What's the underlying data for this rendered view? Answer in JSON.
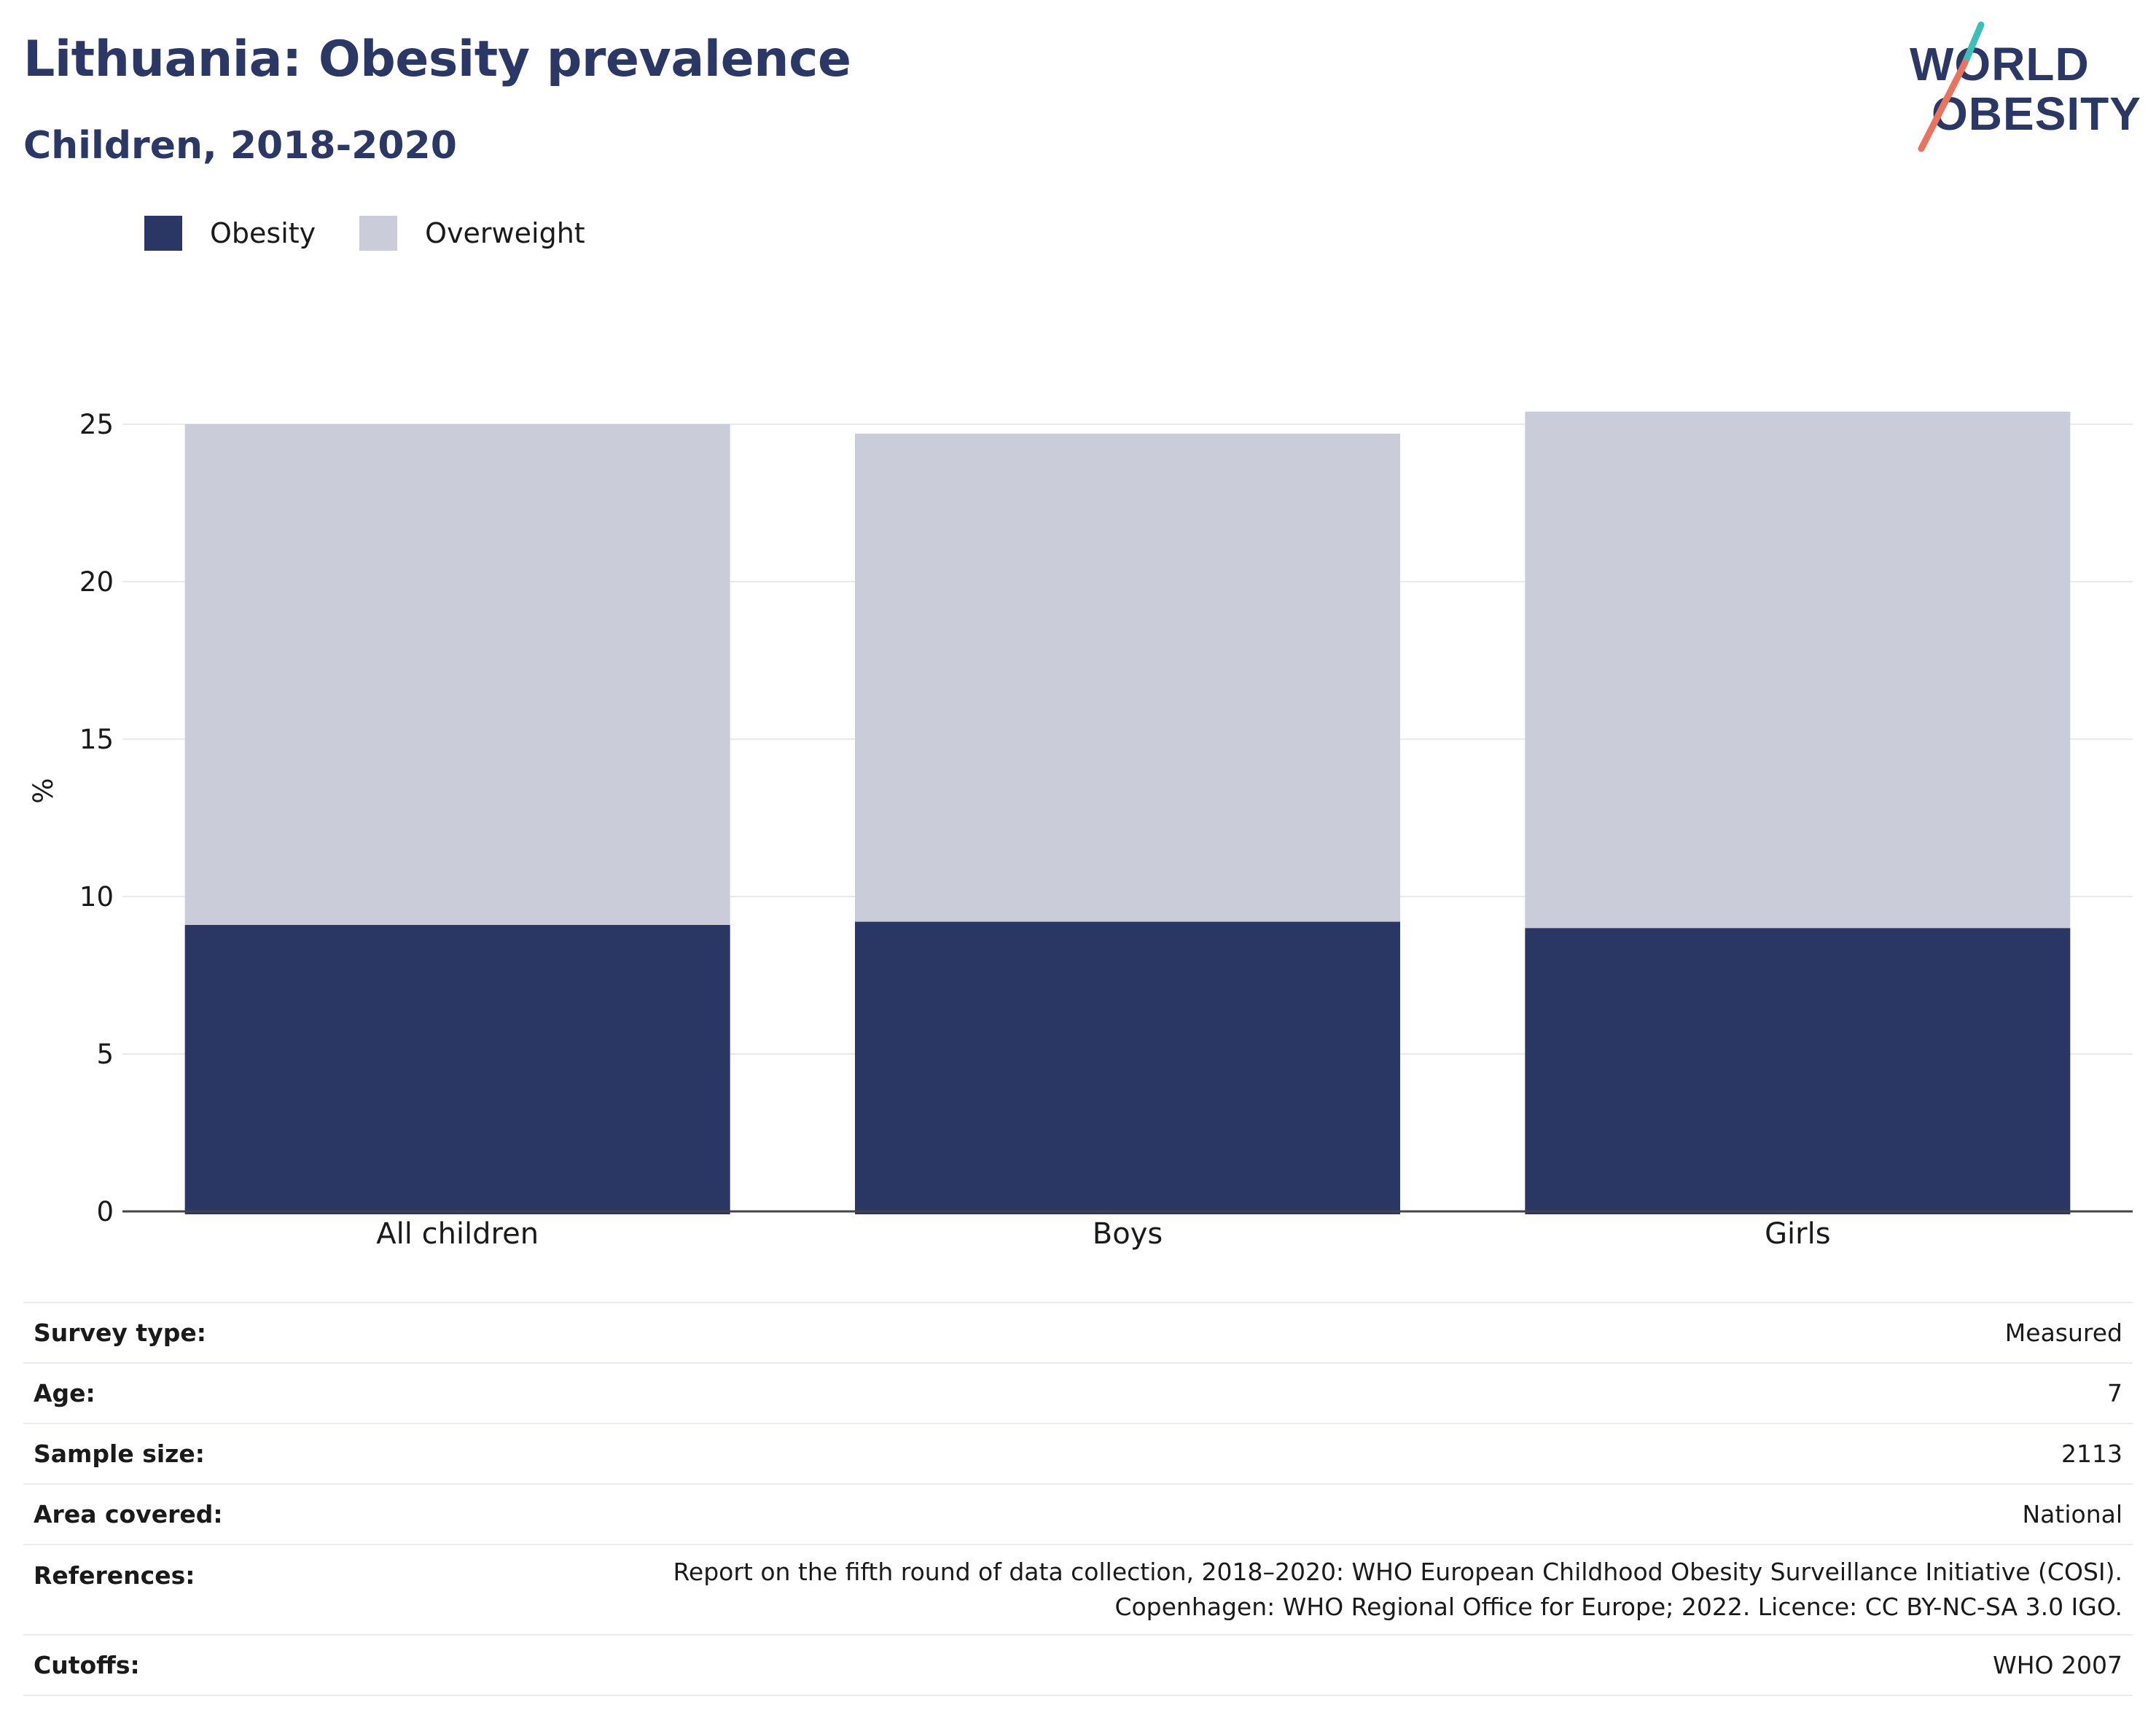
{
  "header": {
    "title": "Lithuania: Obesity prevalence",
    "subtitle": "Children, 2018-2020"
  },
  "logo": {
    "line1": "WORLD",
    "line2": "OBESITY"
  },
  "colors": {
    "obesity": "#2a3663",
    "overweight": "#cacdd9",
    "logo_teal": "#3cbfb4",
    "logo_coral": "#e8735f"
  },
  "legend": [
    {
      "label": "Obesity",
      "color": "#2a3663"
    },
    {
      "label": "Overweight",
      "color": "#cacdd9"
    }
  ],
  "chart_data": {
    "type": "bar",
    "stacked": true,
    "categories": [
      "All children",
      "Boys",
      "Girls"
    ],
    "series": [
      {
        "name": "Obesity",
        "values": [
          9.1,
          9.2,
          9.0
        ]
      },
      {
        "name": "Overweight",
        "values": [
          15.9,
          15.5,
          16.4
        ]
      }
    ],
    "ylabel": "%",
    "ylim": [
      0,
      25.5
    ],
    "yticks": [
      0,
      5,
      10,
      15,
      20,
      25
    ],
    "grid": true,
    "legend_position": "top-left"
  },
  "info": [
    {
      "label": "Survey type:",
      "value": "Measured"
    },
    {
      "label": "Age:",
      "value": "7"
    },
    {
      "label": "Sample size:",
      "value": "2113"
    },
    {
      "label": "Area covered:",
      "value": "National"
    },
    {
      "label": "References:",
      "value": "Report on the fifth round of data collection, 2018–2020: WHO European Childhood Obesity Surveillance Initiative (COSI). Copenhagen: WHO Regional Office for Europe; 2022. Licence: CC BY-NC-SA 3.0 IGO."
    },
    {
      "label": "Cutoffs:",
      "value": "WHO 2007"
    }
  ]
}
